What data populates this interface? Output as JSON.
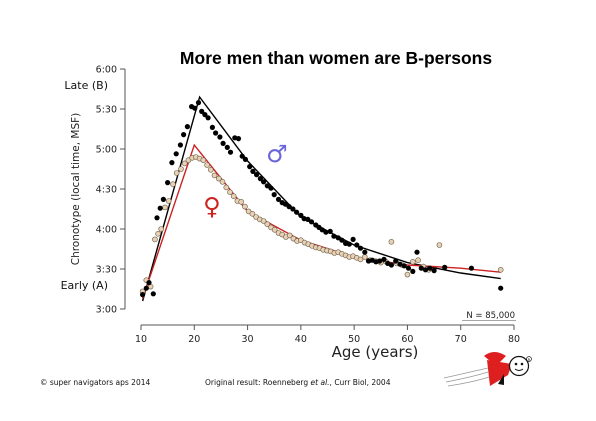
{
  "chart_data": {
    "type": "scatter",
    "title": "More men than women are B-persons",
    "xlabel": "Age (years)",
    "ylabel": "Chronotype (local time, MSF)",
    "xlim": [
      10,
      80
    ],
    "ylim": [
      3.0,
      6.0
    ],
    "x_ticks": [
      10,
      20,
      30,
      40,
      50,
      60,
      70,
      80
    ],
    "y_ticks": [
      {
        "value": 3.0,
        "label": "3:00"
      },
      {
        "value": 3.5,
        "label": "3:30"
      },
      {
        "value": 4.0,
        "label": "4:00"
      },
      {
        "value": 4.5,
        "label": "4:30"
      },
      {
        "value": 5.0,
        "label": "5:00"
      },
      {
        "value": 5.5,
        "label": "5:30"
      },
      {
        "value": 6.0,
        "label": "6:00"
      }
    ],
    "y_side_labels": [
      {
        "value": 5.8,
        "label": "Late (B)"
      },
      {
        "value": 3.3,
        "label": "Early (A)"
      }
    ],
    "annotation_n": "N = 85,000",
    "grid": false,
    "series": [
      {
        "symbol": "♂",
        "color": "#000000",
        "symbol_color": "#6a66d8",
        "symbol_pos": [
          35.5,
          4.94
        ],
        "points": [
          [
            10.3,
            3.18
          ],
          [
            11.0,
            3.26
          ],
          [
            11.5,
            3.33
          ],
          [
            12.3,
            3.19
          ],
          [
            13.0,
            4.14
          ],
          [
            13.6,
            4.26
          ],
          [
            14.2,
            4.37
          ],
          [
            15.0,
            4.58
          ],
          [
            15.8,
            4.83
          ],
          [
            16.6,
            4.94
          ],
          [
            17.4,
            5.05
          ],
          [
            18.0,
            5.18
          ],
          [
            18.7,
            5.28
          ],
          [
            19.5,
            5.53
          ],
          [
            20.1,
            5.51
          ],
          [
            20.8,
            5.58
          ],
          [
            21.4,
            5.47
          ],
          [
            22.0,
            5.43
          ],
          [
            22.6,
            5.39
          ],
          [
            23.4,
            5.27
          ],
          [
            24.0,
            5.2
          ],
          [
            24.8,
            5.15
          ],
          [
            25.4,
            5.07
          ],
          [
            26.2,
            5.02
          ],
          [
            26.8,
            4.96
          ],
          [
            27.6,
            5.14
          ],
          [
            28.3,
            5.13
          ],
          [
            29.0,
            4.91
          ],
          [
            29.6,
            4.87
          ],
          [
            30.4,
            4.78
          ],
          [
            31.0,
            4.72
          ],
          [
            31.7,
            4.68
          ],
          [
            32.4,
            4.63
          ],
          [
            33.0,
            4.59
          ],
          [
            33.7,
            4.54
          ],
          [
            34.4,
            4.51
          ],
          [
            35.0,
            4.43
          ],
          [
            35.8,
            4.37
          ],
          [
            36.5,
            4.33
          ],
          [
            37.1,
            4.31
          ],
          [
            37.8,
            4.28
          ],
          [
            38.5,
            4.25
          ],
          [
            39.2,
            4.21
          ],
          [
            40.0,
            4.17
          ],
          [
            40.6,
            4.13
          ],
          [
            41.3,
            4.12
          ],
          [
            42.0,
            4.09
          ],
          [
            42.8,
            4.05
          ],
          [
            43.4,
            4.02
          ],
          [
            44.0,
            3.99
          ],
          [
            44.7,
            3.96
          ],
          [
            45.5,
            3.97
          ],
          [
            46.2,
            3.91
          ],
          [
            47.0,
            3.89
          ],
          [
            47.7,
            3.86
          ],
          [
            48.4,
            3.82
          ],
          [
            49.1,
            3.81
          ],
          [
            49.8,
            3.87
          ],
          [
            50.5,
            3.8
          ],
          [
            51.2,
            3.76
          ],
          [
            52.0,
            3.71
          ],
          [
            52.7,
            3.6
          ],
          [
            53.4,
            3.61
          ],
          [
            54.1,
            3.59
          ],
          [
            54.8,
            3.6
          ],
          [
            55.6,
            3.62
          ],
          [
            56.3,
            3.57
          ],
          [
            57.0,
            3.55
          ],
          [
            57.8,
            3.6
          ],
          [
            58.6,
            3.56
          ],
          [
            59.4,
            3.54
          ],
          [
            60.2,
            3.51
          ],
          [
            61.0,
            3.47
          ],
          [
            61.8,
            3.71
          ],
          [
            62.6,
            3.51
          ],
          [
            63.4,
            3.49
          ],
          [
            64.2,
            3.51
          ],
          [
            65.0,
            3.48
          ],
          [
            67.0,
            3.52
          ],
          [
            72.0,
            3.51
          ],
          [
            77.5,
            3.26
          ]
        ],
        "fit": [
          [
            10.3,
            3.1
          ],
          [
            21.0,
            5.65
          ],
          [
            30,
            4.85
          ],
          [
            40,
            4.15
          ],
          [
            50,
            3.8
          ],
          [
            60,
            3.58
          ],
          [
            70,
            3.45
          ],
          [
            77.5,
            3.38
          ]
        ]
      },
      {
        "symbol": "♀",
        "color": "#cc2222",
        "symbol_color": "#cc2222",
        "symbol_pos": [
          23.3,
          4.28
        ],
        "points": [
          [
            10.3,
            3.22
          ],
          [
            11.0,
            3.36
          ],
          [
            11.8,
            3.28
          ],
          [
            12.6,
            3.87
          ],
          [
            13.2,
            3.94
          ],
          [
            13.8,
            4.0
          ],
          [
            14.5,
            4.27
          ],
          [
            15.2,
            4.35
          ],
          [
            16.0,
            4.56
          ],
          [
            16.7,
            4.7
          ],
          [
            17.5,
            4.75
          ],
          [
            18.2,
            4.82
          ],
          [
            18.9,
            4.86
          ],
          [
            19.6,
            4.89
          ],
          [
            20.3,
            4.9
          ],
          [
            21.0,
            4.88
          ],
          [
            21.7,
            4.86
          ],
          [
            22.4,
            4.8
          ],
          [
            23.1,
            4.74
          ],
          [
            23.8,
            4.67
          ],
          [
            24.6,
            4.63
          ],
          [
            25.3,
            4.59
          ],
          [
            26.0,
            4.52
          ],
          [
            26.7,
            4.46
          ],
          [
            27.4,
            4.41
          ],
          [
            28.1,
            4.35
          ],
          [
            28.8,
            4.34
          ],
          [
            29.5,
            4.28
          ],
          [
            30.2,
            4.22
          ],
          [
            30.9,
            4.19
          ],
          [
            31.6,
            4.15
          ],
          [
            32.3,
            4.12
          ],
          [
            33.0,
            4.1
          ],
          [
            33.7,
            4.06
          ],
          [
            34.4,
            4.02
          ],
          [
            35.1,
            3.99
          ],
          [
            35.8,
            3.95
          ],
          [
            36.5,
            3.93
          ],
          [
            37.2,
            3.9
          ],
          [
            37.9,
            3.92
          ],
          [
            38.6,
            3.88
          ],
          [
            39.3,
            3.85
          ],
          [
            40.0,
            3.86
          ],
          [
            40.7,
            3.83
          ],
          [
            41.4,
            3.81
          ],
          [
            42.1,
            3.79
          ],
          [
            42.8,
            3.77
          ],
          [
            43.5,
            3.76
          ],
          [
            44.2,
            3.74
          ],
          [
            44.9,
            3.73
          ],
          [
            45.6,
            3.72
          ],
          [
            46.3,
            3.7
          ],
          [
            47.0,
            3.71
          ],
          [
            47.7,
            3.69
          ],
          [
            48.4,
            3.67
          ],
          [
            49.1,
            3.65
          ],
          [
            49.8,
            3.66
          ],
          [
            50.5,
            3.64
          ],
          [
            51.2,
            3.62
          ],
          [
            52.0,
            3.65
          ],
          [
            53.0,
            3.61
          ],
          [
            54.0,
            3.6
          ],
          [
            55.0,
            3.58
          ],
          [
            56.0,
            3.59
          ],
          [
            57.0,
            3.84
          ],
          [
            58.0,
            3.57
          ],
          [
            59.0,
            3.55
          ],
          [
            60.0,
            3.43
          ],
          [
            61.0,
            3.59
          ],
          [
            62.0,
            3.61
          ],
          [
            63.0,
            3.53
          ],
          [
            64.0,
            3.49
          ],
          [
            66.0,
            3.8
          ],
          [
            77.5,
            3.49
          ]
        ],
        "fit": [
          [
            10.3,
            3.13
          ],
          [
            20.0,
            5.05
          ],
          [
            30,
            4.22
          ],
          [
            40,
            3.86
          ],
          [
            50,
            3.65
          ],
          [
            60,
            3.55
          ],
          [
            70,
            3.51
          ],
          [
            77.5,
            3.46
          ]
        ]
      }
    ]
  },
  "footer": {
    "copyright": "© super navigators aps 2014",
    "source_prefix": "Original result: Roenneberg ",
    "source_etal": "et al.",
    "source_suffix": ", Curr Biol, 2004"
  },
  "logo": {
    "mark": "R"
  }
}
